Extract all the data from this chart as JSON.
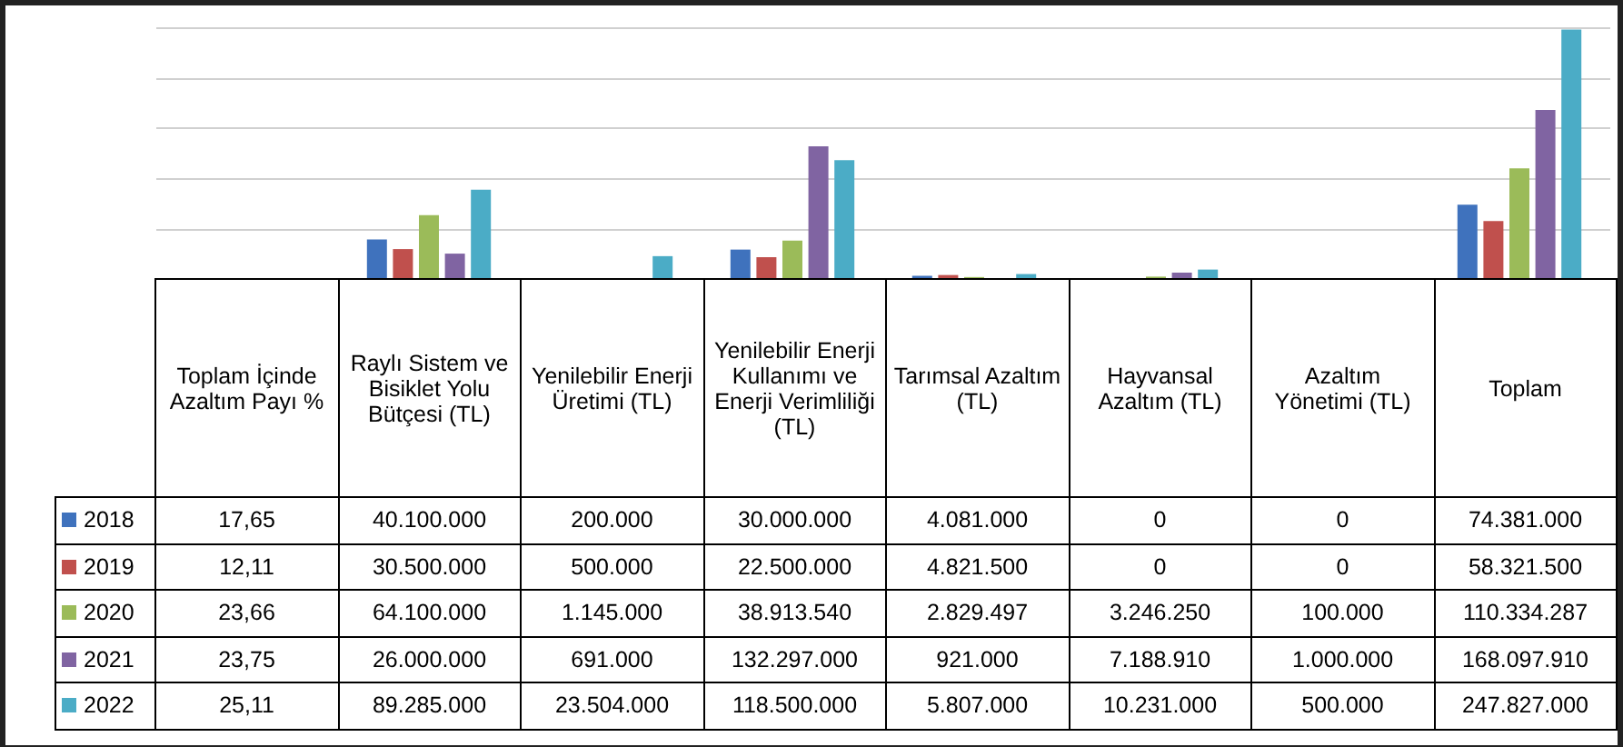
{
  "chart_data": {
    "type": "bar",
    "categories": [
      "Toplam İçinde Azaltım Payı %",
      "Raylı Sistem ve Bisiklet Yolu Bütçesi (TL)",
      "Yenilebilir Enerji Üretimi (TL)",
      "Yenilebilir Enerji Kullanımı ve Enerji Verimliliği (TL)",
      "Tarımsal Azaltım (TL)",
      "Hayvansal Azaltım (TL)",
      "Azaltım Yönetimi (TL)",
      "Toplam"
    ],
    "series": [
      {
        "name": "2018",
        "color": "#3f72bd",
        "values": [
          null,
          40100000,
          200000,
          30000000,
          4081000,
          0,
          0,
          74381000
        ],
        "value_labels": [
          "17,65",
          "40.100.000",
          "200.000",
          "30.000.000",
          "4.081.000",
          "0",
          "0",
          "74.381.000"
        ]
      },
      {
        "name": "2019",
        "color": "#c0504d",
        "values": [
          null,
          30500000,
          500000,
          22500000,
          4821500,
          0,
          0,
          58321500
        ],
        "value_labels": [
          "12,11",
          "30.500.000",
          "500.000",
          "22.500.000",
          "4.821.500",
          "0",
          "0",
          "58.321.500"
        ]
      },
      {
        "name": "2020",
        "color": "#9bbb59",
        "values": [
          null,
          64100000,
          1145000,
          38913540,
          2829497,
          3246250,
          100000,
          110334287
        ],
        "value_labels": [
          "23,66",
          "64.100.000",
          "1.145.000",
          "38.913.540",
          "2.829.497",
          "3.246.250",
          "100.000",
          "110.334.287"
        ]
      },
      {
        "name": "2021",
        "color": "#8064a2",
        "values": [
          null,
          26000000,
          691000,
          132297000,
          921000,
          7188910,
          1000000,
          168097910
        ],
        "value_labels": [
          "23,75",
          "26.000.000",
          "691.000",
          "132.297.000",
          "921.000",
          "7.188.910",
          "1.000.000",
          "168.097.910"
        ]
      },
      {
        "name": "2022",
        "color": "#4bacc6",
        "values": [
          null,
          89285000,
          23504000,
          118500000,
          5807000,
          10231000,
          500000,
          247827000
        ],
        "value_labels": [
          "25,11",
          "89.285.000",
          "23.504.000",
          "118.500.000",
          "5.807.000",
          "10.231.000",
          "500.000",
          "247.827.000"
        ]
      }
    ],
    "grid": "y",
    "legend": "bottom left"
  }
}
